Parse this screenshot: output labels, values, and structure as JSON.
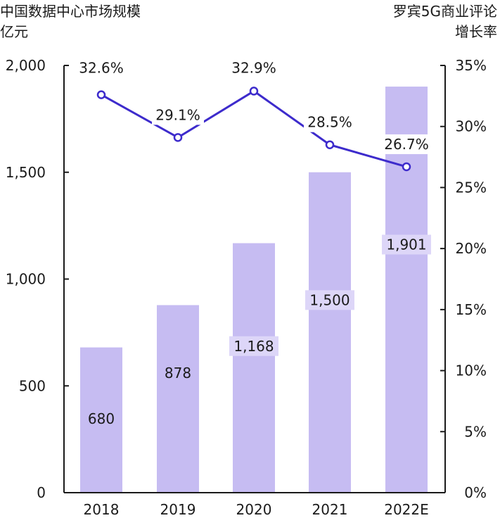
{
  "chart_data": {
    "type": "bar+line",
    "left_title": [
      "中国数据中心市场规模",
      "亿元"
    ],
    "right_title": [
      "罗宾5G商业评论",
      "增长率"
    ],
    "categories": [
      "2018",
      "2019",
      "2020",
      "2021",
      "2022E"
    ],
    "series": [
      {
        "name": "市场规模",
        "type": "bar",
        "axis": "left",
        "values": [
          680,
          878,
          1168,
          1500,
          1901
        ],
        "labels": [
          "680",
          "878",
          "1,168",
          "1,500",
          "1,901"
        ]
      },
      {
        "name": "增长率",
        "type": "line",
        "axis": "right",
        "values": [
          32.6,
          29.1,
          32.9,
          28.5,
          26.7
        ],
        "labels": [
          "32.6%",
          "29.1%",
          "32.9%",
          "28.5%",
          "26.7%"
        ]
      }
    ],
    "left_axis": {
      "range": [
        0,
        2000
      ],
      "ticks": [
        0,
        500,
        1000,
        1500,
        2000
      ],
      "tick_labels": [
        "0",
        "500",
        "1,000",
        "1,500",
        "2,000"
      ]
    },
    "right_axis": {
      "range": [
        0,
        35
      ],
      "ticks": [
        0,
        5,
        10,
        15,
        20,
        25,
        30,
        35
      ],
      "tick_labels": [
        "0%",
        "5%",
        "10%",
        "15%",
        "20%",
        "25%",
        "30%",
        "35%"
      ]
    },
    "colors": {
      "bar": "#c6bcf2",
      "line": "#3d2bcc",
      "axis": "#1a1a1a"
    },
    "grid": false
  }
}
